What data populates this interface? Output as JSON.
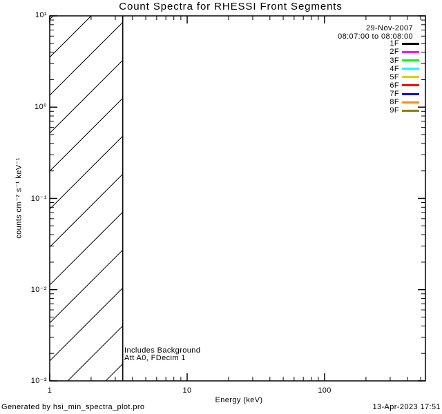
{
  "title": "Count Spectra for RHESSI Front Segments",
  "header": {
    "date": "29-Nov-2007",
    "time_range": "08:07:00 to 08:08:00"
  },
  "legend": {
    "entries": [
      {
        "label": "1F",
        "color": "#000000"
      },
      {
        "label": "2F",
        "color": "#FF00FF"
      },
      {
        "label": "3F",
        "color": "#00FF00"
      },
      {
        "label": "4F",
        "color": "#00FFFF"
      },
      {
        "label": "5F",
        "color": "#D6D600"
      },
      {
        "label": "6F",
        "color": "#FF0000"
      },
      {
        "label": "7F",
        "color": "#0000FF"
      },
      {
        "label": "8F",
        "color": "#FF8C00"
      },
      {
        "label": "9F",
        "color": "#8B7D00"
      }
    ]
  },
  "axes": {
    "x": {
      "label": "Energy (keV)",
      "scale": "log",
      "ticks": [
        {
          "v": 1,
          "label": "1"
        },
        {
          "v": 10,
          "label": "10"
        },
        {
          "v": 100,
          "label": "100"
        }
      ]
    },
    "y": {
      "label": "counts cm⁻² s⁻¹ keV⁻¹",
      "scale": "log",
      "ticks": [
        {
          "v": 10,
          "label": "10¹"
        },
        {
          "v": 1,
          "label": "10⁰"
        },
        {
          "v": 0.1,
          "label": "10⁻¹"
        },
        {
          "v": 0.01,
          "label": "10⁻²"
        },
        {
          "v": 0.001,
          "label": "10⁻³"
        }
      ]
    }
  },
  "annotations": {
    "line1": "Includes Background",
    "line2": "Att A0, FDecim 1"
  },
  "footer": {
    "left": "Generated by hsi_min_spectra_plot.pro",
    "right": "13-Apr-2023 17:51"
  },
  "chart_data": {
    "type": "line",
    "title": "Count Spectra for RHESSI Front Segments",
    "xlabel": "Energy (keV)",
    "ylabel": "counts cm-2 s-1 keV-1",
    "x_scale": "log",
    "y_scale": "log",
    "xlim": [
      1,
      540
    ],
    "ylim": [
      0.001,
      10
    ],
    "grid": false,
    "legend_position": "top-right",
    "date": "29-Nov-2007",
    "time_range": "08:07:00 to 08:08:00",
    "series": [
      {
        "name": "1F",
        "color": "#000000",
        "values": []
      },
      {
        "name": "2F",
        "color": "#FF00FF",
        "values": []
      },
      {
        "name": "3F",
        "color": "#00FF00",
        "values": []
      },
      {
        "name": "4F",
        "color": "#00FFFF",
        "values": []
      },
      {
        "name": "5F",
        "color": "#D6D600",
        "values": []
      },
      {
        "name": "6F",
        "color": "#FF0000",
        "values": []
      },
      {
        "name": "7F",
        "color": "#0000FF",
        "values": []
      },
      {
        "name": "8F",
        "color": "#FF8C00",
        "values": []
      },
      {
        "name": "9F",
        "color": "#8B7D00",
        "values": []
      }
    ],
    "hatched_region": {
      "x_from": 1,
      "x_to": 3.4,
      "y_from": 0.001,
      "y_to": 10,
      "style": "diagonal-lines"
    },
    "notes": [
      "Includes Background",
      "Att A0, FDecim 1"
    ]
  }
}
